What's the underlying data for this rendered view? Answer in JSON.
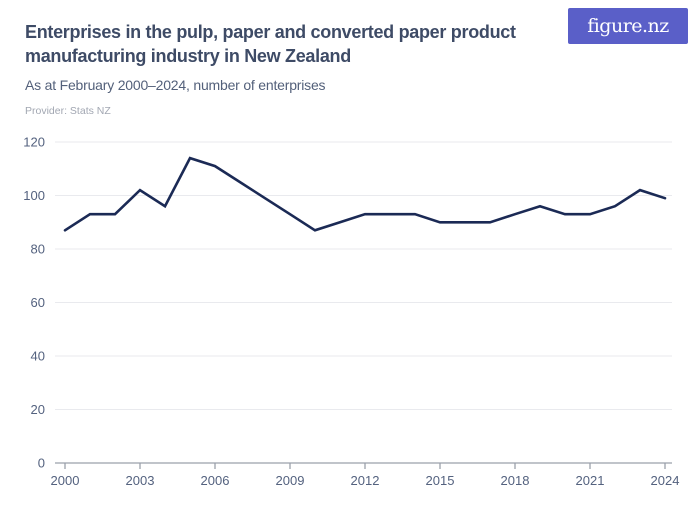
{
  "header": {
    "title": "Enterprises in the pulp, paper and converted paper product manufacturing industry in New Zealand",
    "subtitle": "As at February 2000–2024, number of enterprises",
    "provider": "Provider: Stats NZ",
    "logo_text": "figure.nz",
    "logo_bg": "#5a5fc8"
  },
  "chart_data": {
    "type": "line",
    "title": "Enterprises in the pulp, paper and converted paper product manufacturing industry in New Zealand",
    "subtitle": "As at February 2000–2024, number of enterprises",
    "provider": "Stats NZ",
    "series_name": "Number of enterprises",
    "x": [
      2000,
      2001,
      2002,
      2003,
      2004,
      2005,
      2006,
      2007,
      2008,
      2009,
      2010,
      2011,
      2012,
      2013,
      2014,
      2015,
      2016,
      2017,
      2018,
      2019,
      2020,
      2021,
      2022,
      2023,
      2024
    ],
    "values": [
      87,
      93,
      93,
      102,
      96,
      114,
      111,
      105,
      99,
      93,
      87,
      90,
      93,
      93,
      93,
      90,
      90,
      90,
      93,
      96,
      93,
      93,
      96,
      102,
      99
    ],
    "xlabel": "",
    "ylabel": "",
    "ylim": [
      0,
      120
    ],
    "yticks": [
      0,
      20,
      40,
      60,
      80,
      100,
      120
    ],
    "xticks": [
      2000,
      2003,
      2006,
      2009,
      2012,
      2015,
      2018,
      2021,
      2024
    ],
    "grid": "horizontal",
    "legend": "none",
    "line_color": "#1b2a55",
    "gridline_color": "#e9eaee",
    "axis_color": "#9aa0ab",
    "tick_label_color": "#54627f"
  }
}
